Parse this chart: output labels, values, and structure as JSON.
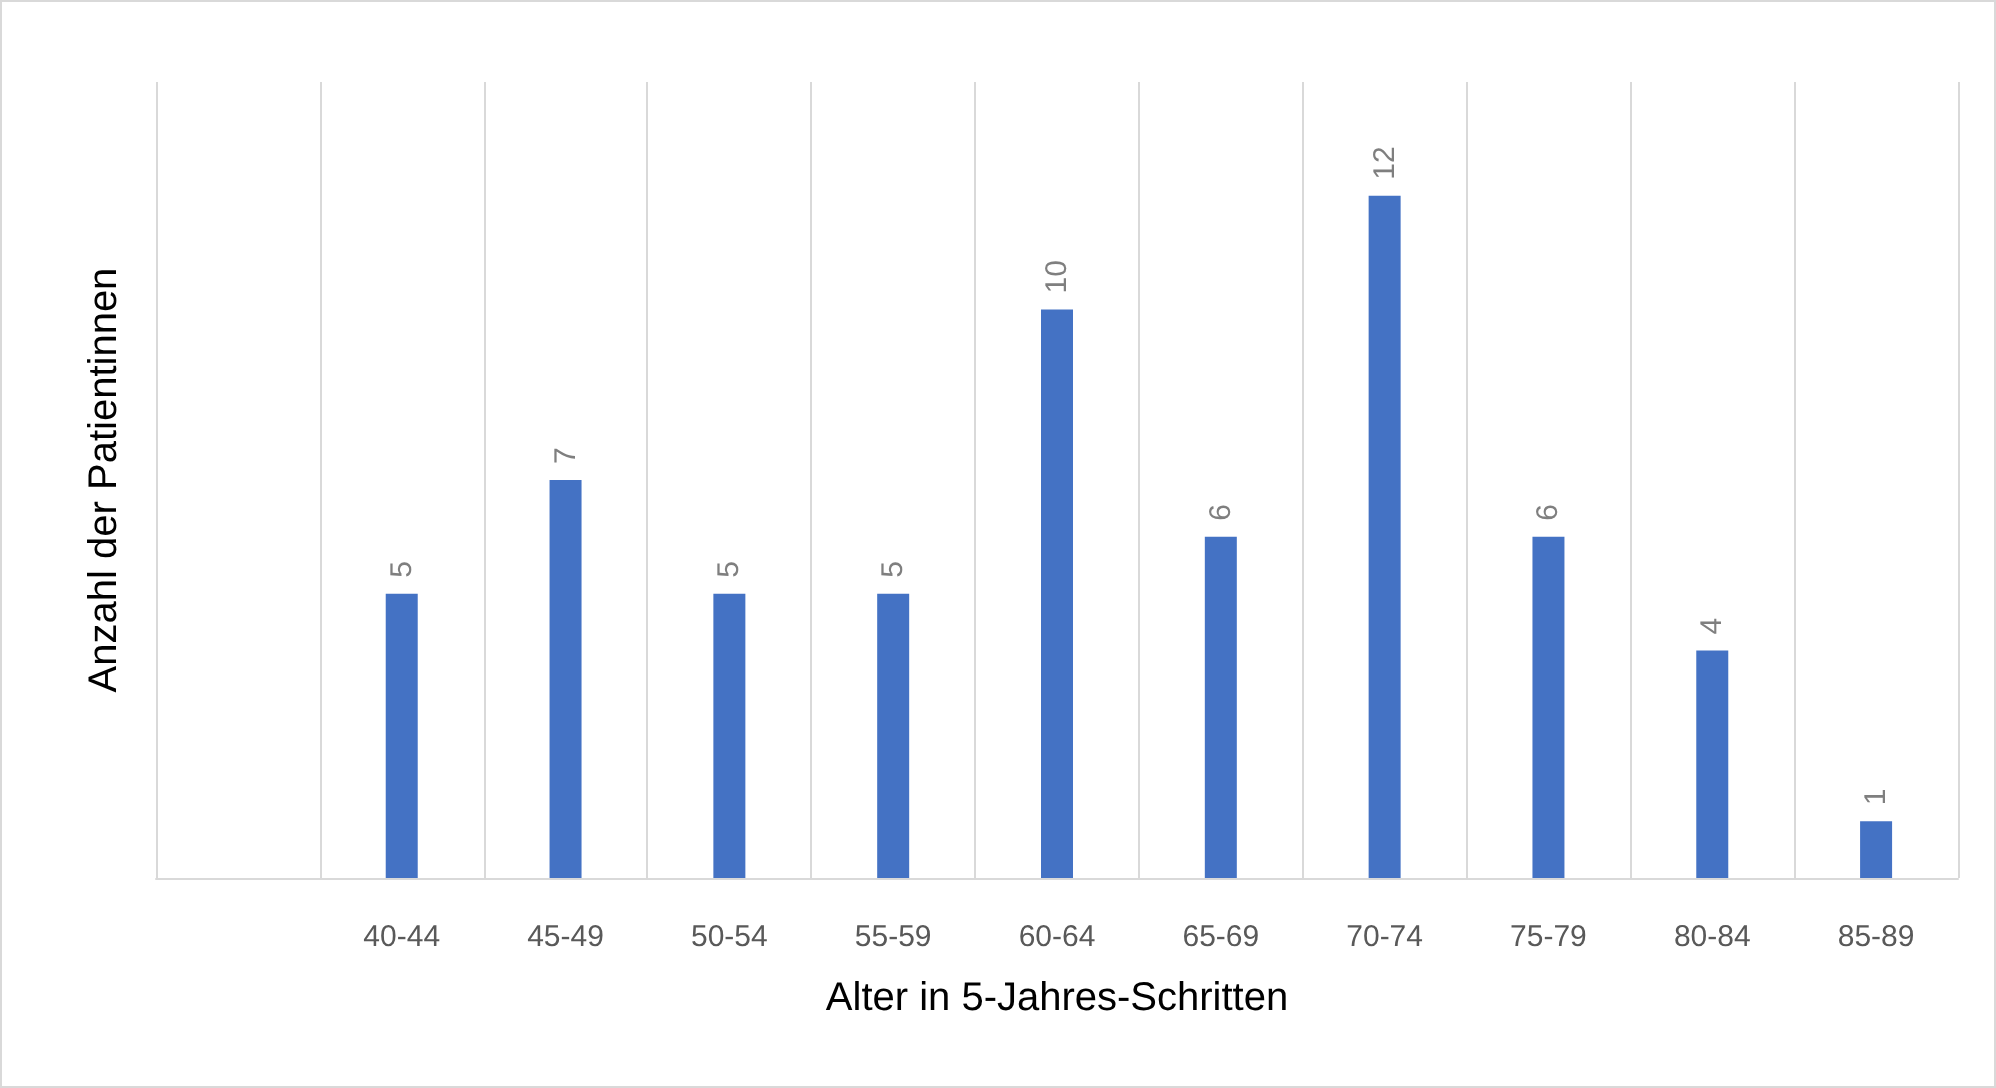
{
  "chart_data": {
    "type": "bar",
    "xlabel": "Alter in 5-Jahres-Schritten",
    "ylabel": "Anzahl der Patientinnen",
    "categories": [
      null,
      "40-44",
      "45-49",
      "50-54",
      "55-59",
      "60-64",
      "65-69",
      "70-74",
      "75-79",
      "80-84",
      "85-89"
    ],
    "values": [
      null,
      5,
      7,
      5,
      5,
      10,
      6,
      12,
      6,
      4,
      1
    ],
    "color": "#4472c4",
    "data_labels": true,
    "grid": "x"
  }
}
